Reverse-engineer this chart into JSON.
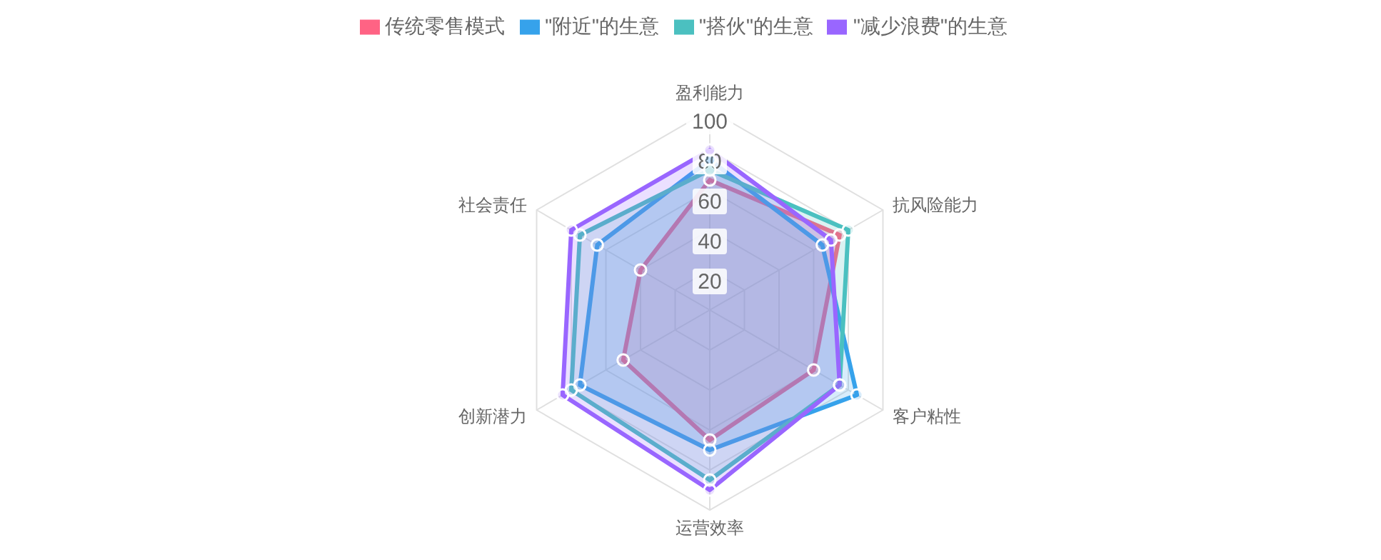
{
  "chart_data": {
    "type": "radar",
    "categories": [
      "盈利能力",
      "抗风险能力",
      "客户粘性",
      "运营效率",
      "创新潜力",
      "社会责任"
    ],
    "series": [
      {
        "name": "传统零售模式",
        "color": "#ff6384",
        "values": [
          65,
          75,
          60,
          65,
          50,
          40
        ]
      },
      {
        "name": "\"附近\"的生意",
        "color": "#36a2eb",
        "values": [
          75,
          65,
          85,
          70,
          75,
          65
        ]
      },
      {
        "name": "\"搭伙\"的生意",
        "color": "#4bc0c0",
        "values": [
          70,
          80,
          75,
          85,
          80,
          75
        ]
      },
      {
        "name": "\"减少浪费\"的生意",
        "color": "#9966ff",
        "values": [
          80,
          70,
          75,
          90,
          85,
          80
        ]
      }
    ],
    "ylim": [
      0,
      100
    ],
    "yticks": [
      20,
      40,
      60,
      80,
      100
    ],
    "grid": true,
    "legend": "top",
    "marker": "circle"
  }
}
